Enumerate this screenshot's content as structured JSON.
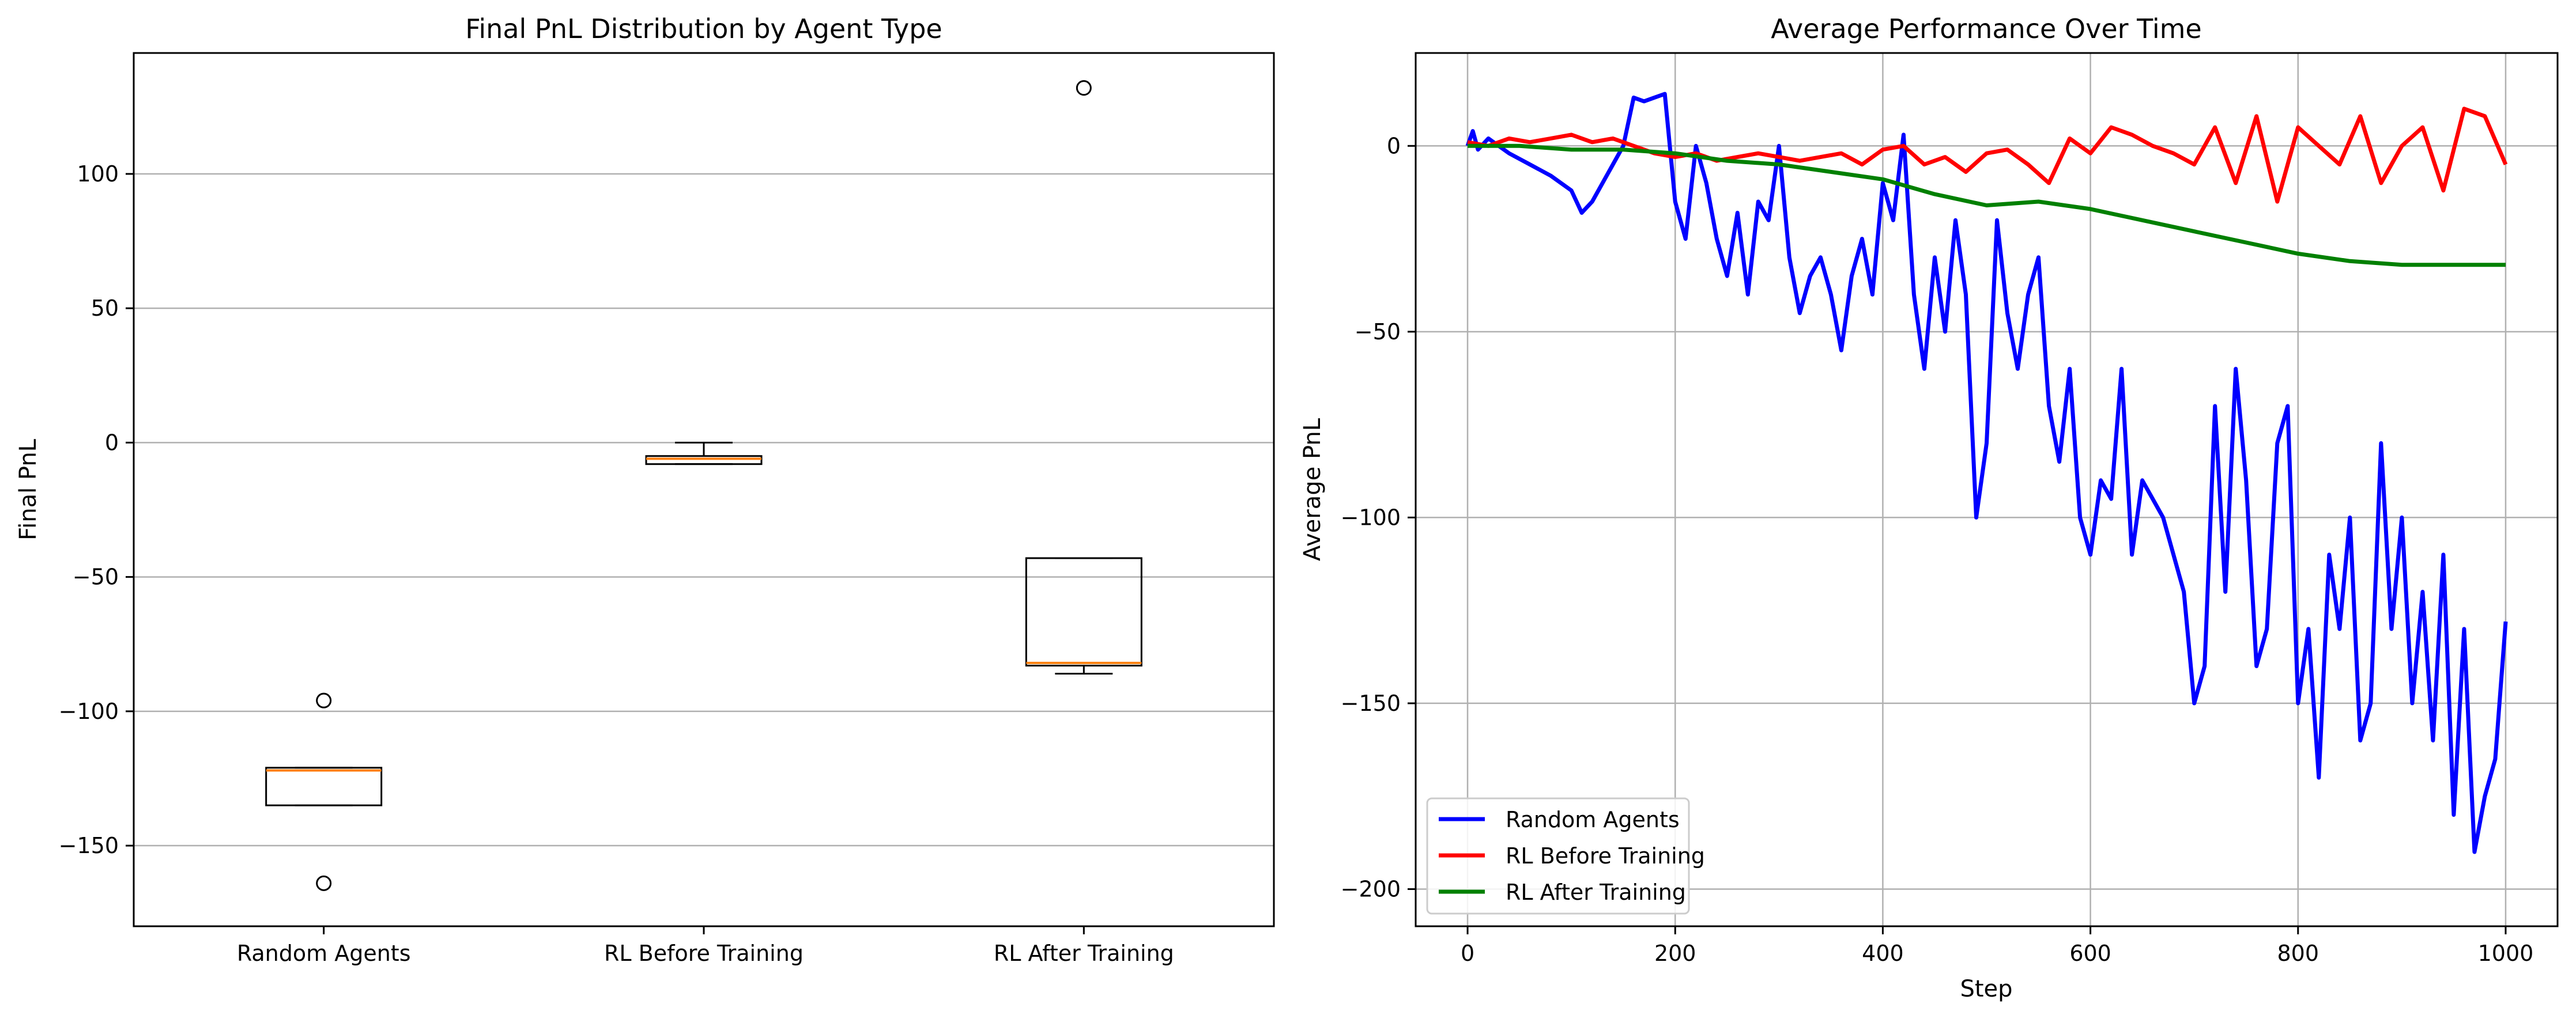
{
  "chart_data": [
    {
      "type": "box",
      "title": "Final PnL Distribution by Agent Type",
      "xlabel": "",
      "ylabel": "Final PnL",
      "ylim": [
        -180,
        145
      ],
      "yticks": [
        -150,
        -100,
        -50,
        0,
        50,
        100
      ],
      "ytick_labels": [
        "−150",
        "−100",
        "−50",
        "0",
        "50",
        "100"
      ],
      "grid": "y",
      "categories": [
        "Random Agents",
        "RL Before Training",
        "RL After Training"
      ],
      "boxes": [
        {
          "name": "Random Agents",
          "whisker_low": -135,
          "q1": -135,
          "median": -122,
          "q3": -121,
          "whisker_high": -121,
          "outliers": [
            -96,
            -164
          ]
        },
        {
          "name": "RL Before Training",
          "whisker_low": -8,
          "q1": -8,
          "median": -6,
          "q3": -5,
          "whisker_high": 0,
          "outliers": []
        },
        {
          "name": "RL After Training",
          "whisker_low": -86,
          "q1": -83,
          "median": -82,
          "q3": -43,
          "whisker_high": -43,
          "outliers": [
            132
          ]
        }
      ],
      "colors": {
        "box": "#000000",
        "median": "#ff7f0e",
        "grid": "#b0b0b0"
      }
    },
    {
      "type": "line",
      "title": "Average Performance Over Time",
      "xlabel": "Step",
      "ylabel": "Average PnL",
      "xlim": [
        -50,
        1050
      ],
      "ylim": [
        -210,
        25
      ],
      "xticks": [
        0,
        200,
        400,
        600,
        800,
        1000
      ],
      "xtick_labels": [
        "0",
        "200",
        "400",
        "600",
        "800",
        "1000"
      ],
      "yticks": [
        -200,
        -150,
        -100,
        -50,
        0
      ],
      "ytick_labels": [
        "−200",
        "−150",
        "−100",
        "−50",
        "0"
      ],
      "grid": "both",
      "legend_position": "lower-left",
      "series": [
        {
          "name": "Random Agents",
          "color": "#0000ff",
          "x": [
            0,
            5,
            10,
            20,
            30,
            40,
            60,
            80,
            100,
            110,
            120,
            130,
            140,
            150,
            160,
            170,
            180,
            190,
            200,
            210,
            220,
            230,
            240,
            250,
            260,
            270,
            280,
            290,
            300,
            310,
            320,
            330,
            340,
            350,
            360,
            370,
            380,
            390,
            400,
            410,
            420,
            430,
            440,
            450,
            460,
            470,
            480,
            490,
            500,
            510,
            520,
            530,
            540,
            550,
            560,
            570,
            580,
            590,
            600,
            610,
            620,
            630,
            640,
            650,
            660,
            670,
            680,
            690,
            700,
            710,
            720,
            730,
            740,
            750,
            760,
            770,
            780,
            790,
            800,
            810,
            820,
            830,
            840,
            850,
            860,
            870,
            880,
            890,
            900,
            910,
            920,
            930,
            940,
            950,
            960,
            970,
            980,
            990,
            1000
          ],
          "y": [
            0,
            4,
            -1,
            2,
            0,
            -2,
            -5,
            -8,
            -12,
            -18,
            -15,
            -10,
            -5,
            0,
            13,
            12,
            13,
            14,
            -15,
            -25,
            0,
            -10,
            -25,
            -35,
            -18,
            -40,
            -15,
            -20,
            0,
            -30,
            -45,
            -35,
            -30,
            -40,
            -55,
            -35,
            -25,
            -40,
            -10,
            -20,
            3,
            -40,
            -60,
            -30,
            -50,
            -20,
            -40,
            -100,
            -80,
            -20,
            -45,
            -60,
            -40,
            -30,
            -70,
            -85,
            -60,
            -100,
            -110,
            -90,
            -95,
            -60,
            -110,
            -90,
            -95,
            -100,
            -110,
            -120,
            -150,
            -140,
            -70,
            -120,
            -60,
            -90,
            -140,
            -130,
            -80,
            -70,
            -150,
            -130,
            -170,
            -110,
            -130,
            -100,
            -160,
            -150,
            -80,
            -130,
            -100,
            -150,
            -120,
            -160,
            -110,
            -180,
            -130,
            -190,
            -175,
            -165,
            -128
          ]
        },
        {
          "name": "RL Before Training",
          "color": "#ff0000",
          "x": [
            0,
            20,
            40,
            60,
            80,
            100,
            120,
            140,
            160,
            180,
            200,
            220,
            240,
            260,
            280,
            300,
            320,
            340,
            360,
            380,
            400,
            420,
            440,
            460,
            480,
            500,
            520,
            540,
            560,
            580,
            600,
            620,
            640,
            660,
            680,
            700,
            720,
            740,
            760,
            780,
            800,
            820,
            840,
            860,
            880,
            900,
            920,
            940,
            960,
            980,
            1000
          ],
          "y": [
            1,
            0,
            2,
            1,
            2,
            3,
            1,
            2,
            0,
            -2,
            -3,
            -2,
            -4,
            -3,
            -2,
            -3,
            -4,
            -3,
            -2,
            -5,
            -1,
            0,
            -5,
            -3,
            -7,
            -2,
            -1,
            -5,
            -10,
            2,
            -2,
            5,
            3,
            0,
            -2,
            -5,
            5,
            -10,
            8,
            -15,
            5,
            0,
            -5,
            8,
            -10,
            0,
            5,
            -12,
            10,
            8,
            -5
          ]
        },
        {
          "name": "RL After Training",
          "color": "#008000",
          "x": [
            0,
            50,
            100,
            150,
            200,
            250,
            300,
            350,
            400,
            450,
            500,
            550,
            600,
            650,
            700,
            750,
            800,
            850,
            900,
            950,
            1000
          ],
          "y": [
            0,
            0,
            -1,
            -1,
            -2,
            -4,
            -5,
            -7,
            -9,
            -13,
            -16,
            -15,
            -17,
            -20,
            -23,
            -26,
            -29,
            -31,
            -32,
            -32,
            -32
          ]
        }
      ]
    }
  ]
}
